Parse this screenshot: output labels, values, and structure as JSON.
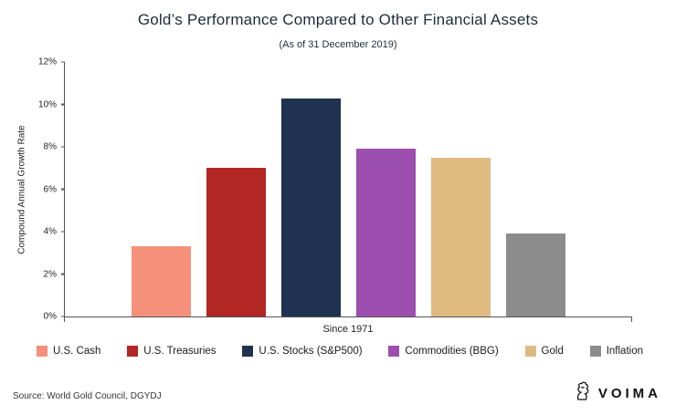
{
  "chart_data": {
    "type": "bar",
    "title": "Gold’s Performance Compared to Other Financial Assets",
    "subtitle": "(As of 31 December 2019)",
    "xlabel": "Since 1971",
    "ylabel": "Compound Annual Growth Rate",
    "categories": [
      "U.S. Cash",
      "U.S. Treasuries",
      "U.S. Stocks (S&P500)",
      "Commodities (BBG)",
      "Gold",
      "Inflation"
    ],
    "values": [
      3.3,
      7.0,
      10.3,
      7.9,
      7.5,
      3.9
    ],
    "colors": [
      "#F5907B",
      "#B22623",
      "#1F3350",
      "#9C4FAF",
      "#DFBB82",
      "#8C8C8C"
    ],
    "ylim": [
      0,
      12
    ],
    "yticks": [
      0,
      2,
      4,
      6,
      8,
      10,
      12
    ],
    "ytick_suffix": "%",
    "grid": false,
    "legend_position": "bottom"
  },
  "footer": {
    "source": "Source: World Gold Council, DGYDJ",
    "brand": "VOIMA"
  }
}
